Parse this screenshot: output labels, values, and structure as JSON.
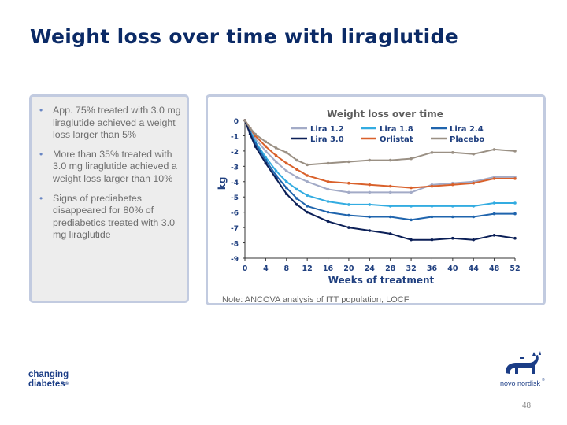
{
  "slide": {
    "title": "Weight loss over time with liraglutide",
    "page_number": "48"
  },
  "bullets": [
    "App. 75% treated with 3.0 mg liraglutide achieved a weight loss larger than 5%",
    "More than 35% treated with 3.0 mg liraglutide achieved a weight loss larger than 10%",
    "Signs of prediabetes disappeared for 80% of prediabetics treated with 3.0 mg liraglutide"
  ],
  "logos": {
    "changing_line1": "changing",
    "changing_line2": "diabetes",
    "changing_reg": "®",
    "novo": "novo nordisk",
    "novo_reg": "®"
  },
  "chart_data": {
    "type": "line",
    "title": "Weight loss over time",
    "xlabel": "Weeks of treatment",
    "ylabel": "kg",
    "note": "Note: ANCOVA analysis of ITT population, LOCF",
    "xlim": [
      0,
      52
    ],
    "ylim": [
      -9,
      0
    ],
    "x_ticks": [
      0,
      4,
      8,
      12,
      16,
      20,
      24,
      28,
      32,
      36,
      40,
      44,
      48,
      52
    ],
    "y_ticks": [
      0,
      -1,
      -2,
      -3,
      -4,
      -5,
      -6,
      -7,
      -8,
      -9
    ],
    "x": [
      0,
      1,
      2,
      4,
      6,
      8,
      10,
      12,
      16,
      20,
      24,
      28,
      32,
      36,
      40,
      44,
      48,
      52
    ],
    "series": [
      {
        "name": "Lira 1.2",
        "color": "#a3abc7",
        "values": [
          0,
          -0.6,
          -1.2,
          -2.0,
          -2.7,
          -3.3,
          -3.7,
          -4.0,
          -4.5,
          -4.7,
          -4.7,
          -4.7,
          -4.7,
          -4.2,
          -4.1,
          -4.0,
          -3.7,
          -3.7
        ]
      },
      {
        "name": "Lira 1.8",
        "color": "#33ace1",
        "values": [
          0,
          -0.7,
          -1.4,
          -2.4,
          -3.3,
          -4.0,
          -4.5,
          -4.9,
          -5.3,
          -5.5,
          -5.5,
          -5.6,
          -5.6,
          -5.6,
          -5.6,
          -5.6,
          -5.4,
          -5.4
        ]
      },
      {
        "name": "Lira 2.4",
        "color": "#1f64ad",
        "values": [
          0,
          -0.8,
          -1.5,
          -2.6,
          -3.6,
          -4.4,
          -5.1,
          -5.6,
          -6.0,
          -6.2,
          -6.3,
          -6.3,
          -6.5,
          -6.3,
          -6.3,
          -6.3,
          -6.1,
          -6.1
        ]
      },
      {
        "name": "Lira 3.0",
        "color": "#0b1f57",
        "values": [
          0,
          -0.9,
          -1.7,
          -2.8,
          -3.8,
          -4.8,
          -5.5,
          -6.0,
          -6.6,
          -7.0,
          -7.2,
          -7.4,
          -7.8,
          -7.8,
          -7.7,
          -7.8,
          -7.5,
          -7.7
        ]
      },
      {
        "name": "Orlistat",
        "color": "#d9612b",
        "values": [
          0,
          -0.5,
          -1.0,
          -1.7,
          -2.3,
          -2.8,
          -3.2,
          -3.6,
          -4.0,
          -4.1,
          -4.2,
          -4.3,
          -4.4,
          -4.3,
          -4.2,
          -4.1,
          -3.8,
          -3.8
        ]
      },
      {
        "name": "Placebo",
        "color": "#9a9084",
        "values": [
          0,
          -0.5,
          -0.9,
          -1.4,
          -1.8,
          -2.1,
          -2.6,
          -2.9,
          -2.8,
          -2.7,
          -2.6,
          -2.6,
          -2.5,
          -2.1,
          -2.1,
          -2.2,
          -1.9,
          -2.0
        ]
      }
    ],
    "legend_position": "top"
  }
}
